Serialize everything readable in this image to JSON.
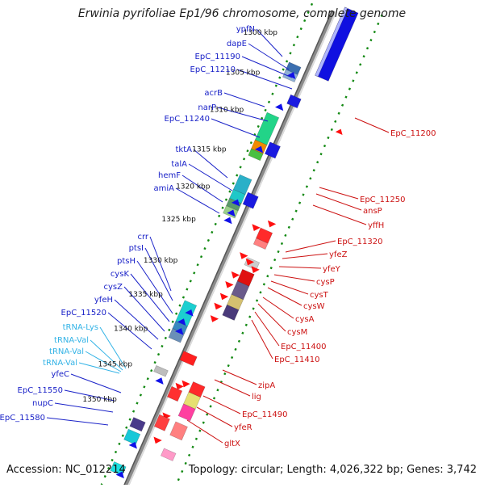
{
  "title": "Erwinia pyrifoliae Ep1/96 chromosome, complete genome",
  "footer": {
    "accession": "Accession: NC_012214",
    "summary": "Topology: circular; Length: 4,026,322 bp; Genes: 3,742"
  },
  "colors": {
    "left_label": "#1a22c8",
    "trna_label": "#33b3e6",
    "right_label": "#cc1111",
    "backbone": "#a7a7a7",
    "tick": "#118811"
  },
  "scale_labels": [
    "1300 kbp",
    "1305 kbp",
    "1310 kbp",
    "1315 kbp",
    "1320 kbp",
    "1325 kbp",
    "1330 kbp",
    "1335 kbp",
    "1340 kbp",
    "1345 kbp",
    "1350 kbp"
  ],
  "left_genes": [
    {
      "label": "ypfN",
      "kind": "gene"
    },
    {
      "label": "dapE",
      "kind": "gene"
    },
    {
      "label": "EpC_11190",
      "kind": "gene"
    },
    {
      "label": "EpC_11210",
      "kind": "gene"
    },
    {
      "label": "acrB",
      "kind": "gene"
    },
    {
      "label": "narP",
      "kind": "gene"
    },
    {
      "label": "EpC_11240",
      "kind": "gene"
    },
    {
      "label": "tktA",
      "kind": "gene"
    },
    {
      "label": "talA",
      "kind": "gene"
    },
    {
      "label": "hemF",
      "kind": "gene"
    },
    {
      "label": "amiA",
      "kind": "gene"
    },
    {
      "label": "crr",
      "kind": "gene"
    },
    {
      "label": "ptsI",
      "kind": "gene"
    },
    {
      "label": "ptsH",
      "kind": "gene"
    },
    {
      "label": "cysK",
      "kind": "gene"
    },
    {
      "label": "cysZ",
      "kind": "gene"
    },
    {
      "label": "yfeH",
      "kind": "gene"
    },
    {
      "label": "EpC_11520",
      "kind": "gene"
    },
    {
      "label": "tRNA-Lys",
      "kind": "trna"
    },
    {
      "label": "tRNA-Val",
      "kind": "trna"
    },
    {
      "label": "tRNA-Val",
      "kind": "trna"
    },
    {
      "label": "tRNA-Val",
      "kind": "trna"
    },
    {
      "label": "yfeC",
      "kind": "gene"
    },
    {
      "label": "EpC_11550",
      "kind": "gene"
    },
    {
      "label": "nupC",
      "kind": "gene"
    },
    {
      "label": "EpC_11580",
      "kind": "gene"
    }
  ],
  "right_genes": [
    {
      "label": "EpC_11200"
    },
    {
      "label": "EpC_11250"
    },
    {
      "label": "ansP"
    },
    {
      "label": "yffH"
    },
    {
      "label": "EpC_11320"
    },
    {
      "label": "yfeZ"
    },
    {
      "label": "yfeY"
    },
    {
      "label": "cysP"
    },
    {
      "label": "cysT"
    },
    {
      "label": "cysW"
    },
    {
      "label": "cysA"
    },
    {
      "label": "cysM"
    },
    {
      "label": "EpC_11400"
    },
    {
      "label": "EpC_11410"
    },
    {
      "label": "zipA"
    },
    {
      "label": "lig"
    },
    {
      "label": "EpC_11490"
    },
    {
      "label": "yfeR"
    },
    {
      "label": "gltX"
    }
  ]
}
